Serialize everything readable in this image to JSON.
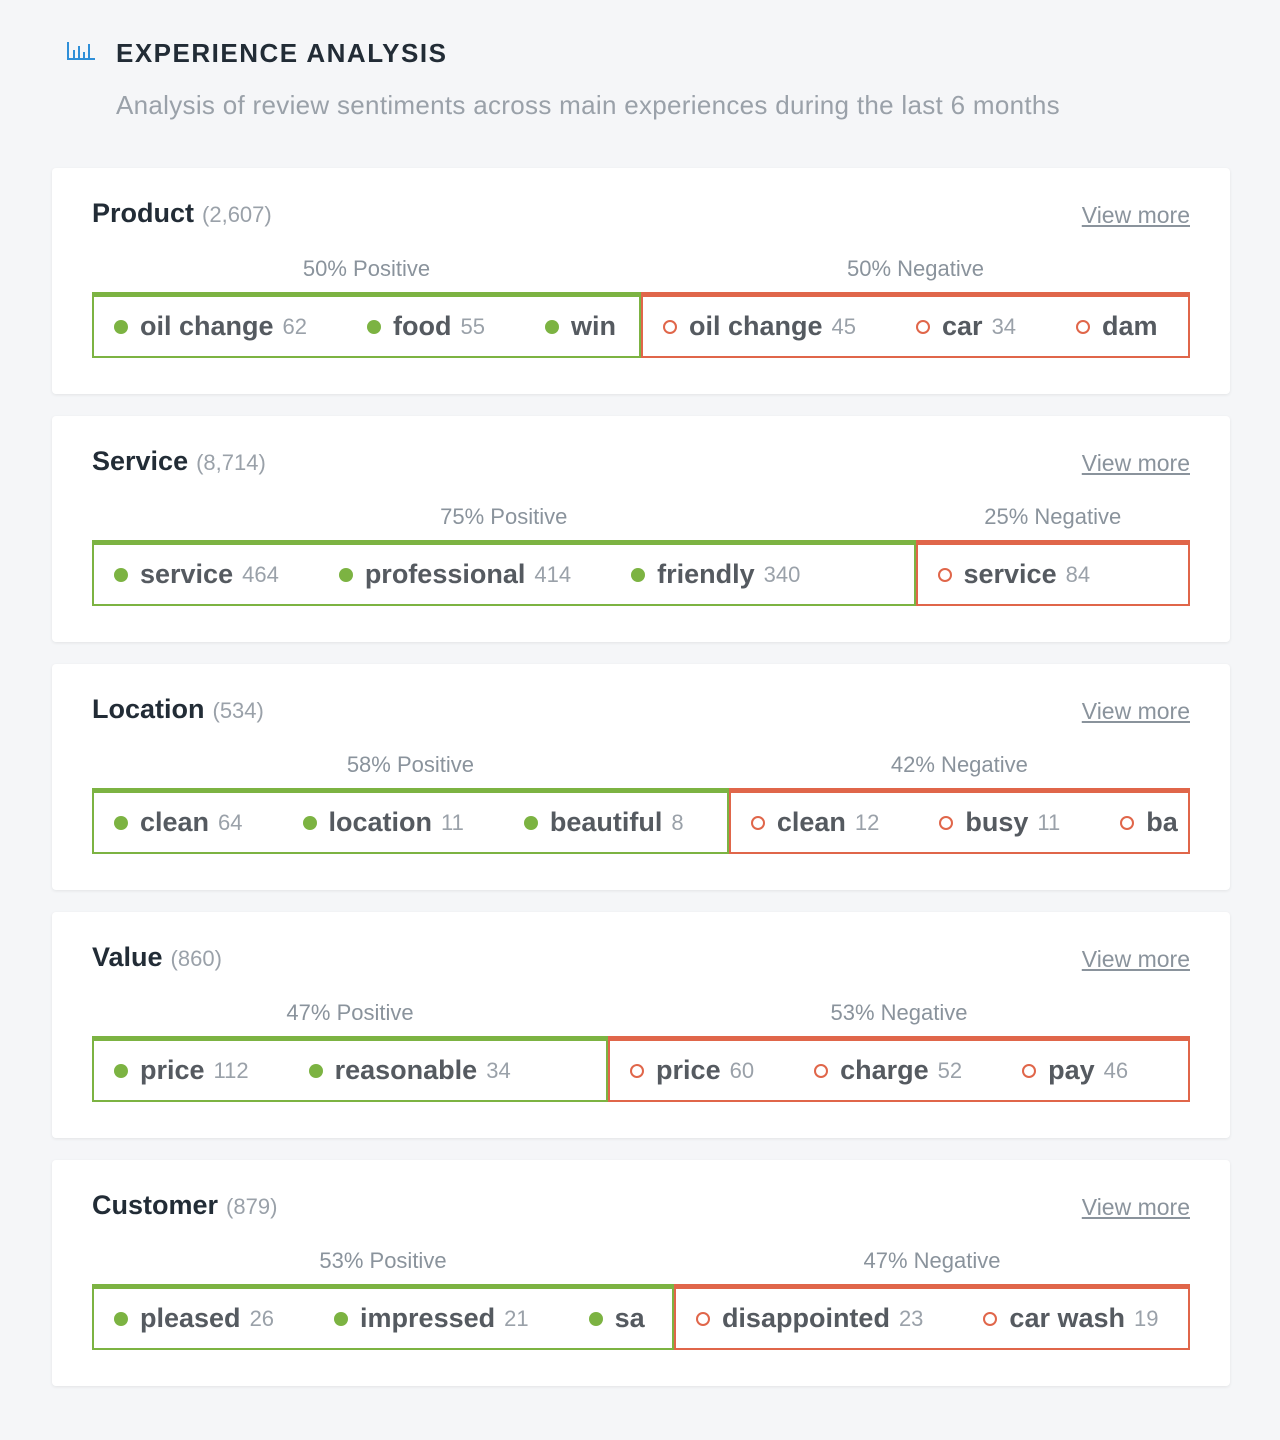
{
  "header": {
    "title": "EXPERIENCE ANALYSIS",
    "subtitle": "Analysis of review sentiments across main experiences during the last 6 months"
  },
  "cards": [
    {
      "name": "Product",
      "count": "(2,607)",
      "link": "View more",
      "positive": {
        "label": "50% Positive",
        "share": 50,
        "tags": [
          {
            "term": "oil change",
            "count": "62"
          },
          {
            "term": "food",
            "count": "55"
          },
          {
            "term": "win"
          }
        ]
      },
      "negative": {
        "label": "50% Negative",
        "share": 50,
        "tags": [
          {
            "term": "oil change",
            "count": "45"
          },
          {
            "term": "car",
            "count": "34"
          },
          {
            "term": "dam"
          }
        ]
      }
    },
    {
      "name": "Service",
      "count": "(8,714)",
      "link": "View more",
      "positive": {
        "label": "75% Positive",
        "share": 75,
        "tags": [
          {
            "term": "service",
            "count": "464"
          },
          {
            "term": "professional",
            "count": "414"
          },
          {
            "term": "friendly",
            "count": "340"
          }
        ]
      },
      "negative": {
        "label": "25% Negative",
        "share": 25,
        "tags": [
          {
            "term": "service",
            "count": "84"
          }
        ]
      }
    },
    {
      "name": "Location",
      "count": "(534)",
      "link": "View more",
      "positive": {
        "label": "58% Positive",
        "share": 58,
        "tags": [
          {
            "term": "clean",
            "count": "64"
          },
          {
            "term": "location",
            "count": "11"
          },
          {
            "term": "beautiful",
            "count": "8"
          }
        ]
      },
      "negative": {
        "label": "42% Negative",
        "share": 42,
        "tags": [
          {
            "term": "clean",
            "count": "12"
          },
          {
            "term": "busy",
            "count": "11"
          },
          {
            "term": "ba"
          }
        ]
      }
    },
    {
      "name": "Value",
      "count": "(860)",
      "link": "View more",
      "positive": {
        "label": "47% Positive",
        "share": 47,
        "tags": [
          {
            "term": "price",
            "count": "112"
          },
          {
            "term": "reasonable",
            "count": "34"
          }
        ]
      },
      "negative": {
        "label": "53% Negative",
        "share": 53,
        "tags": [
          {
            "term": "price",
            "count": "60"
          },
          {
            "term": "charge",
            "count": "52"
          },
          {
            "term": "pay",
            "count": "46"
          }
        ]
      }
    },
    {
      "name": "Customer",
      "count": "(879)",
      "link": "View more",
      "positive": {
        "label": "53% Positive",
        "share": 53,
        "tags": [
          {
            "term": "pleased",
            "count": "26"
          },
          {
            "term": "impressed",
            "count": "21"
          },
          {
            "term": "sa"
          }
        ]
      },
      "negative": {
        "label": "47% Negative",
        "share": 47,
        "tags": [
          {
            "term": "disappointed",
            "count": "23"
          },
          {
            "term": "car wash",
            "count": "19"
          }
        ]
      }
    }
  ]
}
